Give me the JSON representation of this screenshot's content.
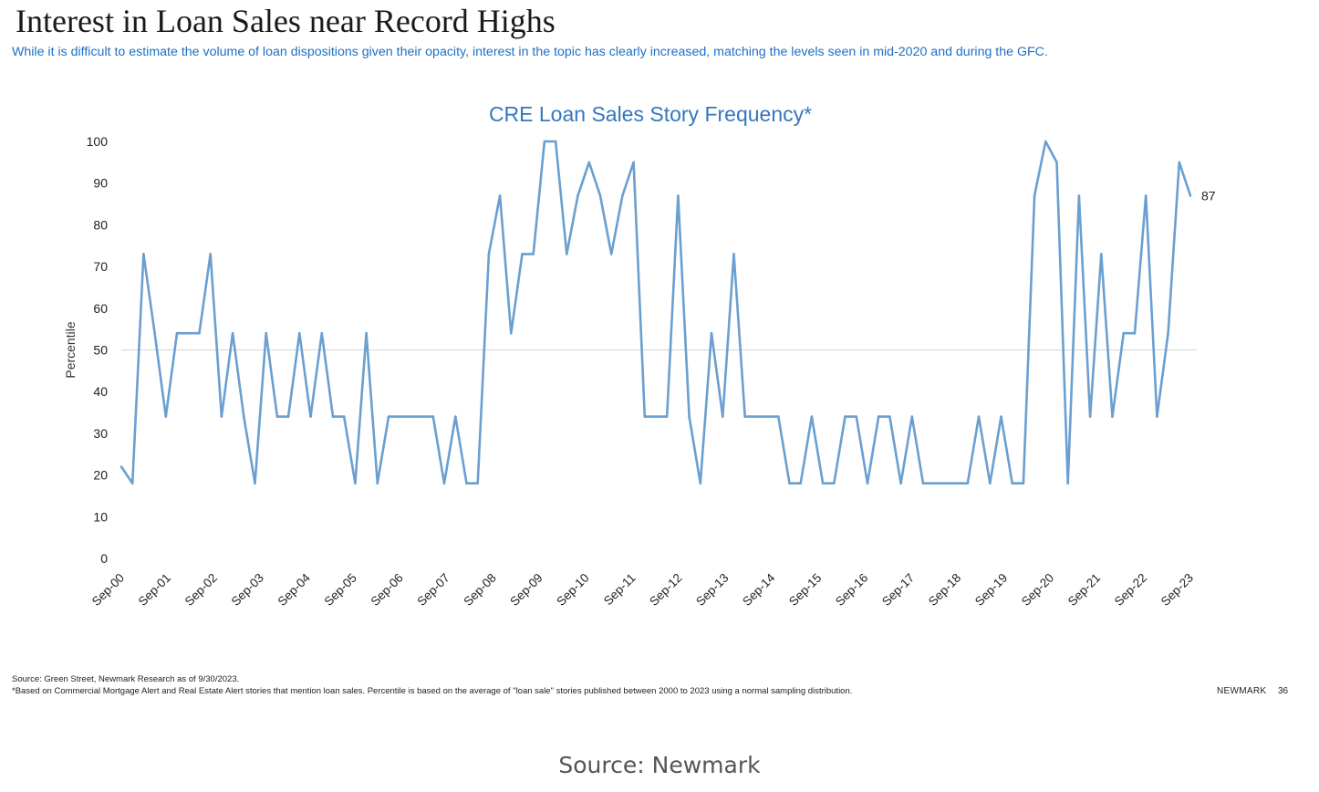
{
  "slide": {
    "title": "Interest in Loan Sales near Record Highs",
    "subtitle": "While it is difficult to estimate the volume of loan dispositions given their opacity, interest in the topic has clearly increased, matching the levels seen in mid-2020 and during the GFC.",
    "source": "Source: Green Street, Newmark Research as of 9/30/2023.",
    "footnote": "*Based on Commercial Mortgage Alert and Real Estate Alert stories that mention loan sales. Percentile is based on the average of \"loan sale\" stories published between 2000 to 2023 using a normal sampling distribution.",
    "brand": "NEWMARK",
    "page_number": "36"
  },
  "caption": "Source: Newmark",
  "chart_data": {
    "type": "line",
    "title": "CRE Loan Sales Story Frequency*",
    "ylabel": "Percentile",
    "xlabel": "",
    "ylim": [
      0,
      100
    ],
    "yticks": [
      0,
      10,
      20,
      30,
      40,
      50,
      60,
      70,
      80,
      90,
      100
    ],
    "x_tick_labels": [
      "Sep-00",
      "Sep-01",
      "Sep-02",
      "Sep-03",
      "Sep-04",
      "Sep-05",
      "Sep-06",
      "Sep-07",
      "Sep-08",
      "Sep-09",
      "Sep-10",
      "Sep-11",
      "Sep-12",
      "Sep-13",
      "Sep-14",
      "Sep-15",
      "Sep-16",
      "Sep-17",
      "Sep-18",
      "Sep-19",
      "Sep-20",
      "Sep-21",
      "Sep-22",
      "Sep-23"
    ],
    "reference_line": 50,
    "end_label": "87",
    "line_color": "#6a9fd0",
    "series": [
      {
        "values": [
          22,
          18,
          73,
          54,
          34,
          54,
          54,
          54,
          73,
          34,
          54,
          34,
          18,
          54,
          34,
          34,
          54,
          34,
          54,
          34,
          34,
          18,
          54,
          18,
          34,
          34,
          34,
          34,
          34,
          18,
          34,
          18,
          18,
          73,
          87,
          54,
          73,
          73,
          100,
          100,
          73,
          87,
          95,
          87,
          73,
          87,
          95,
          34,
          34,
          34,
          87,
          34,
          18,
          54,
          34,
          73,
          34,
          34,
          34,
          34,
          18,
          18,
          34,
          18,
          18,
          34,
          34,
          18,
          34,
          34,
          18,
          34,
          18,
          18,
          18,
          18,
          18,
          34,
          18,
          34,
          18,
          18,
          87,
          100,
          95,
          18,
          87,
          34,
          73,
          34,
          54,
          54,
          87,
          34,
          54,
          95,
          87
        ]
      }
    ]
  }
}
